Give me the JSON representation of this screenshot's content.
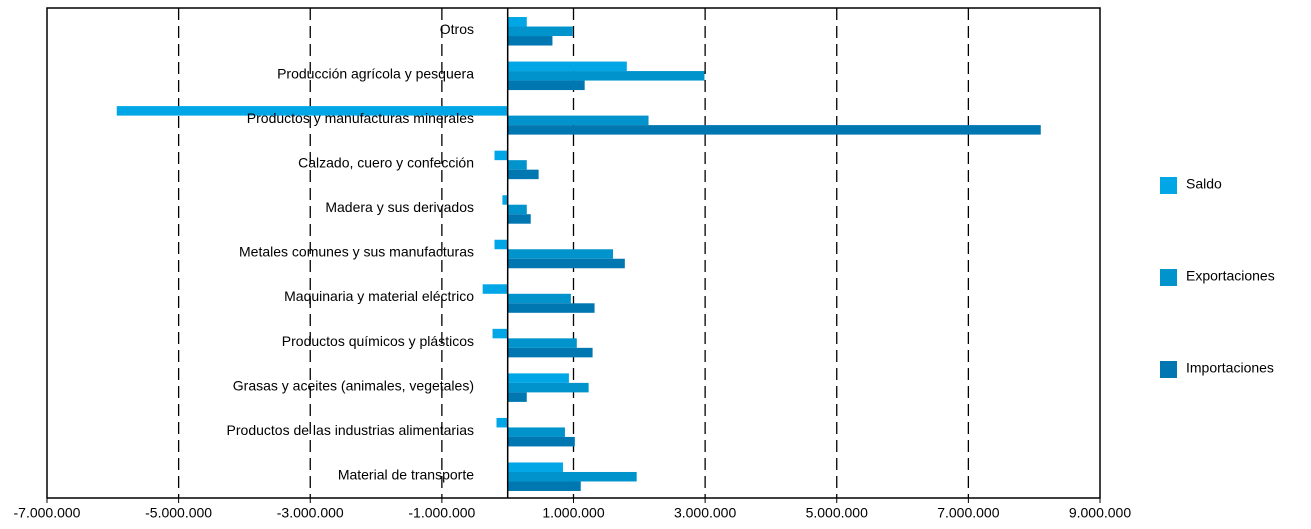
{
  "chart_data": {
    "type": "hbar",
    "categories": [
      "Otros",
      "Producción agrícola y pesquera",
      "Productos y manufacturas minerales",
      "Calzado, cuero y confección",
      "Madera y sus derivados",
      "Metales comunes y sus manufacturas",
      "Maquinaria y material eléctrico",
      "Productos químicos y plásticos",
      "Grasas y aceites (animales, vegetales)",
      "Productos de las industrias alimentarias",
      "Material de transporte"
    ],
    "series": [
      {
        "name": "Saldo",
        "color": "#00a6e6",
        "values": [
          290000,
          1810000,
          -5940000,
          -200000,
          -80000,
          -200000,
          -380000,
          -230000,
          930000,
          -170000,
          840000
        ]
      },
      {
        "name": "Exportaciones",
        "color": "#0093cc",
        "values": [
          990000,
          2990000,
          2140000,
          290000,
          290000,
          1600000,
          960000,
          1050000,
          1230000,
          870000,
          1960000
        ]
      },
      {
        "name": "Importaciones",
        "color": "#0077b0",
        "values": [
          680000,
          1170000,
          8100000,
          470000,
          350000,
          1780000,
          1320000,
          1290000,
          290000,
          1020000,
          1110000
        ]
      }
    ],
    "xlim": [
      -7000000,
      9000000
    ],
    "xticks": [
      {
        "value": -7000000,
        "label": "-7.000.000"
      },
      {
        "value": -5000000,
        "label": "-5.000.000"
      },
      {
        "value": -3000000,
        "label": "-3.000.000"
      },
      {
        "value": -1000000,
        "label": "-1.000.000"
      },
      {
        "value": 1000000,
        "label": "1.000.000"
      },
      {
        "value": 3000000,
        "label": "3.000.000"
      },
      {
        "value": 5000000,
        "label": "5.000.000"
      },
      {
        "value": 7000000,
        "label": "7.000.000"
      },
      {
        "value": 9000000,
        "label": "9.000.000"
      }
    ],
    "grid": true,
    "legend": "right"
  }
}
